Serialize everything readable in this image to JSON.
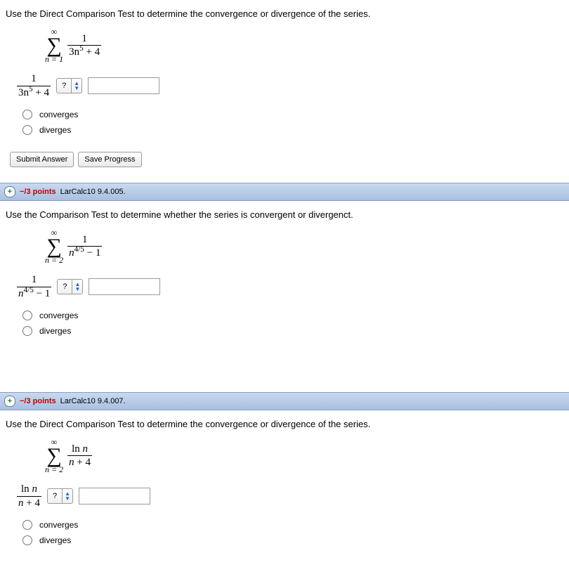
{
  "q1": {
    "prompt": "Use the Direct Comparison Test to determine the convergence or divergence of the series.",
    "sigma_top": "∞",
    "sigma_sym": "∑",
    "sigma_bot": "n = 1",
    "frac_num": "1",
    "frac_den_prefix": "3n",
    "frac_den_exp": "5",
    "frac_den_suffix": " + 4",
    "cmp_num": "1",
    "cmp_den_prefix": "3n",
    "cmp_den_exp": "5",
    "cmp_den_suffix": " + 4",
    "dd_text": "?",
    "opt1": "converges",
    "opt2": "diverges",
    "submit": "Submit Answer",
    "save": "Save Progress"
  },
  "bar2": {
    "expand": "+",
    "points": "−/3 points",
    "ref": "LarCalc10 9.4.005."
  },
  "q2": {
    "prompt": "Use the Comparison Test to determine whether the series is convergent or divergenct.",
    "sigma_top": "∞",
    "sigma_sym": "∑",
    "sigma_bot": "n = 2",
    "frac_num": "1",
    "frac_den_base": "n",
    "frac_den_exp": "4/5",
    "frac_den_suffix": " − 1",
    "cmp_num": "1",
    "cmp_den_base": "n",
    "cmp_den_exp": "4/5",
    "cmp_den_suffix": " − 1",
    "dd_text": "?",
    "opt1": "converges",
    "opt2": "diverges"
  },
  "bar3": {
    "expand": "+",
    "points": "−/3 points",
    "ref": "LarCalc10 9.4.007."
  },
  "q3": {
    "prompt": "Use the Direct Comparison Test to determine the convergence or divergence of the series.",
    "sigma_top": "∞",
    "sigma_sym": "∑",
    "sigma_bot": "n = 2",
    "frac_num_prefix": "ln ",
    "frac_num_var": "n",
    "frac_den_var": "n",
    "frac_den_suffix": " + 4",
    "cmp_num_prefix": "ln ",
    "cmp_num_var": "n",
    "cmp_den_var": "n",
    "cmp_den_suffix": " + 4",
    "dd_text": "?",
    "opt1": "converges",
    "opt2": "diverges"
  }
}
